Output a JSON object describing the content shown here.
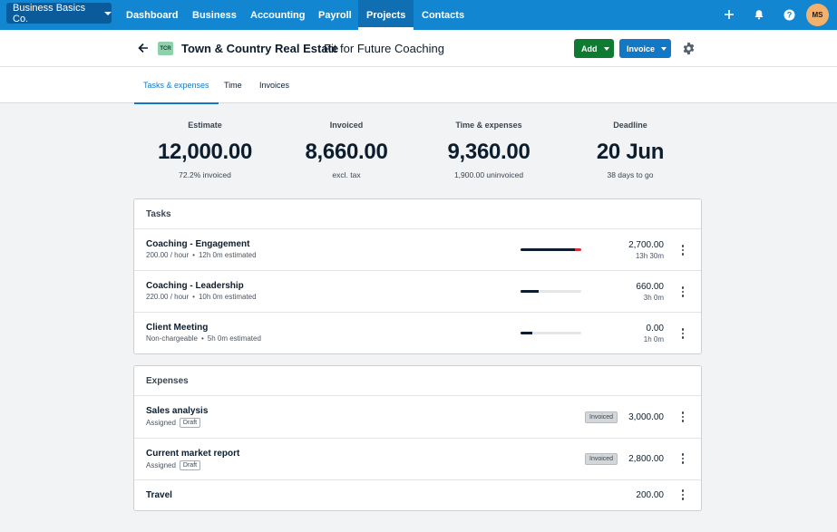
{
  "nav": {
    "org": "Business Basics Co.",
    "items": [
      {
        "label": "Dashboard"
      },
      {
        "label": "Business"
      },
      {
        "label": "Accounting"
      },
      {
        "label": "Payroll"
      },
      {
        "label": "Projects",
        "active": true
      },
      {
        "label": "Contacts"
      }
    ],
    "icons": [
      "plus-icon",
      "bell-icon",
      "help-icon"
    ],
    "avatar": "MS",
    "colors": {
      "bar": "#1386d2",
      "active": "#0f6fb2",
      "avatar": "#f5b16b"
    }
  },
  "header": {
    "client_badge": "TCR",
    "client_name": "Town & Country Real Estate",
    "project_name": "Fit for Future Coaching",
    "add_label": "Add",
    "invoice_label": "Invoice"
  },
  "tabs": [
    {
      "label": "Tasks & expenses",
      "active": true
    },
    {
      "label": "Time"
    },
    {
      "label": "Invoices"
    }
  ],
  "summary": [
    {
      "label": "Estimate",
      "value": "12,000.00",
      "sub": "72.2% invoiced"
    },
    {
      "label": "Invoiced",
      "value": "8,660.00",
      "sub": "excl. tax"
    },
    {
      "label": "Time & expenses",
      "value": "9,360.00",
      "sub": "1,900.00 uninvoiced"
    },
    {
      "label": "Deadline",
      "value": "20 Jun",
      "sub": "38 days to go"
    }
  ],
  "tasks": {
    "title": "Tasks",
    "rows": [
      {
        "name": "Coaching - Engagement",
        "rate": "200.00 / hour",
        "estimate": "12h 0m estimated",
        "amount": "2,700.00",
        "hours": "13h 30m",
        "progress": 1.0,
        "over": 0.1
      },
      {
        "name": "Coaching - Leadership",
        "rate": "220.00 / hour",
        "estimate": "10h 0m estimated",
        "amount": "660.00",
        "hours": "3h 0m",
        "progress": 0.3,
        "over": 0
      },
      {
        "name": "Client Meeting",
        "rate": "Non-chargeable",
        "estimate": "5h 0m estimated",
        "amount": "0.00",
        "hours": "1h 0m",
        "progress": 0.2,
        "over": 0
      }
    ]
  },
  "expenses": {
    "title": "Expenses",
    "rows": [
      {
        "name": "Sales analysis",
        "status": "Assigned",
        "tag": "Draft",
        "badge": "Invoiced",
        "amount": "3,000.00"
      },
      {
        "name": "Current market report",
        "status": "Assigned",
        "tag": "Draft",
        "badge": "Invoiced",
        "amount": "2,800.00"
      },
      {
        "name": "Travel",
        "amount": "200.00"
      }
    ]
  },
  "dot_separator": "•"
}
